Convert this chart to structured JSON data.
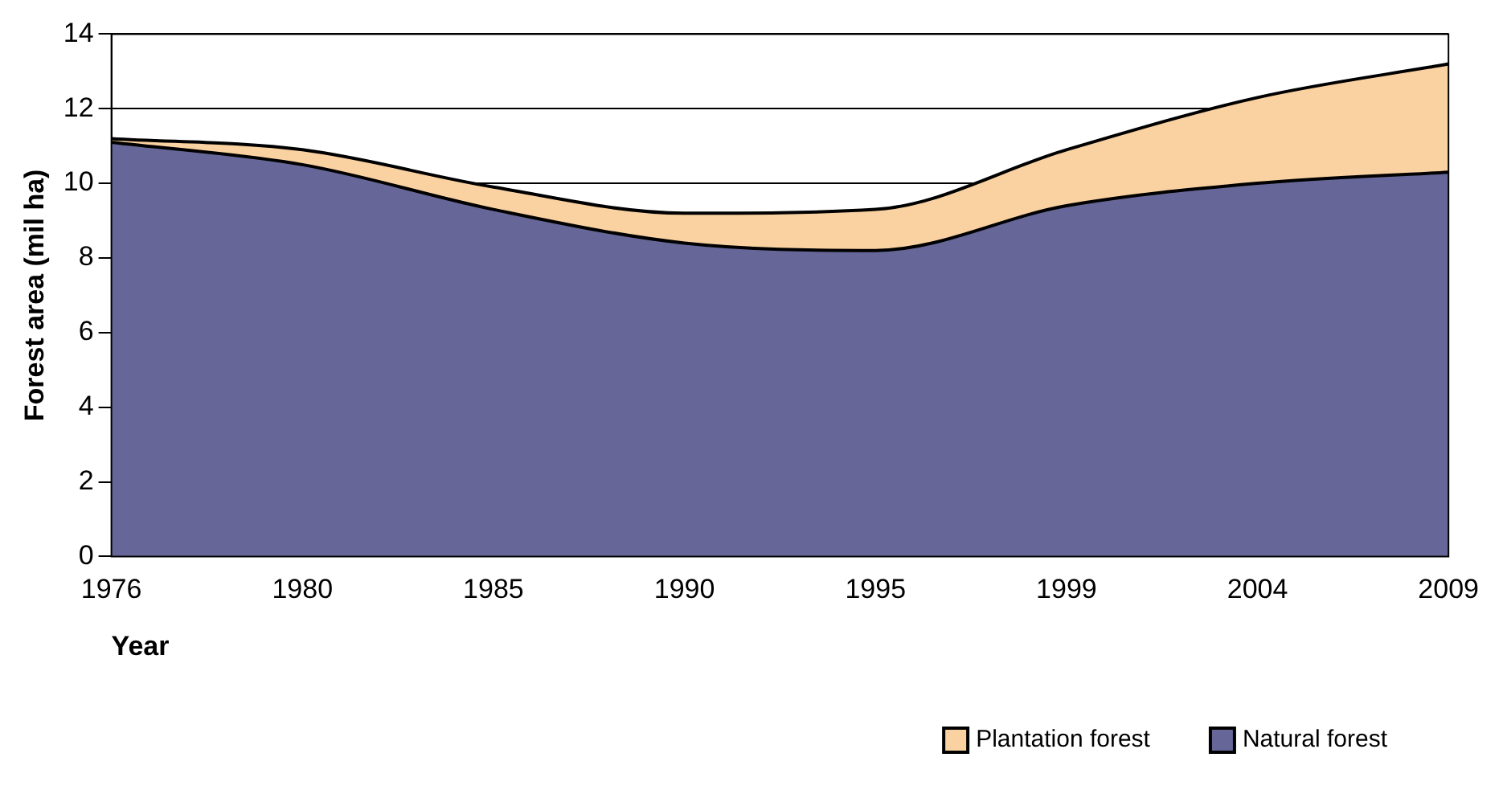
{
  "chart_data": {
    "type": "area",
    "stacked": true,
    "xlabel": "Year",
    "ylabel": "Forest area (mil ha)",
    "categories": [
      "1976",
      "1980",
      "1985",
      "1990",
      "1995",
      "1999",
      "2004",
      "2009"
    ],
    "series": [
      {
        "name": "Natural forest",
        "color": "#666699",
        "values": [
          11.1,
          10.5,
          9.3,
          8.4,
          8.2,
          9.4,
          10.0,
          10.3
        ]
      },
      {
        "name": "Plantation forest",
        "color": "#fad1a0",
        "values": [
          0.1,
          0.4,
          0.6,
          0.8,
          1.1,
          1.5,
          2.3,
          2.9
        ]
      }
    ],
    "ylim": [
      0,
      14
    ],
    "yticks": [
      0,
      2,
      4,
      6,
      8,
      10,
      12,
      14
    ],
    "grid": "y",
    "legend": "bottom right"
  }
}
